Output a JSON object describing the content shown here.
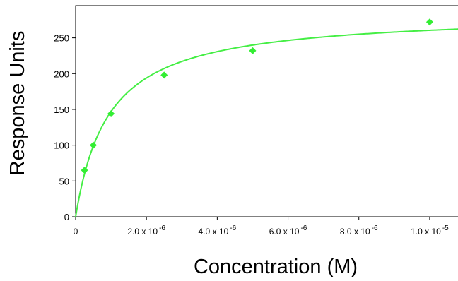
{
  "chart_data": {
    "type": "scatter",
    "title": "",
    "xlabel": "Concentration (M)",
    "ylabel": "Response Units",
    "xlim": [
      0,
      1.09e-05
    ],
    "ylim": [
      0,
      295
    ],
    "grid": false,
    "y_ticks": [
      0,
      50,
      100,
      150,
      200,
      250
    ],
    "y_tick_labels": [
      "0",
      "50",
      "100",
      "150",
      "200",
      "250"
    ],
    "x_ticks": [
      0,
      2e-06,
      4e-06,
      6e-06,
      8e-06,
      1e-05
    ],
    "x_tick_labels": [
      {
        "mantissa": "0",
        "exponent": ""
      },
      {
        "mantissa": "2.0 x 10",
        "exponent": "-6"
      },
      {
        "mantissa": "4.0 x 10",
        "exponent": "-6"
      },
      {
        "mantissa": "6.0 x 10",
        "exponent": "-6"
      },
      {
        "mantissa": "8.0 x 10",
        "exponent": "-6"
      },
      {
        "mantissa": "1.0 x 10",
        "exponent": "-5"
      }
    ],
    "series": [
      {
        "marker": "diamond",
        "color": "#33ee33",
        "points": [
          {
            "x": 2.5e-07,
            "y": 65
          },
          {
            "x": 5e-07,
            "y": 100
          },
          {
            "x": 1e-06,
            "y": 144
          },
          {
            "x": 2.5e-06,
            "y": 198
          },
          {
            "x": 5e-06,
            "y": 232
          },
          {
            "x": 1e-05,
            "y": 272
          }
        ]
      }
    ],
    "fit_curve": {
      "model": "one-site binding",
      "bmax": 285,
      "kd": 9.4e-07,
      "color": "#44ee44"
    }
  }
}
